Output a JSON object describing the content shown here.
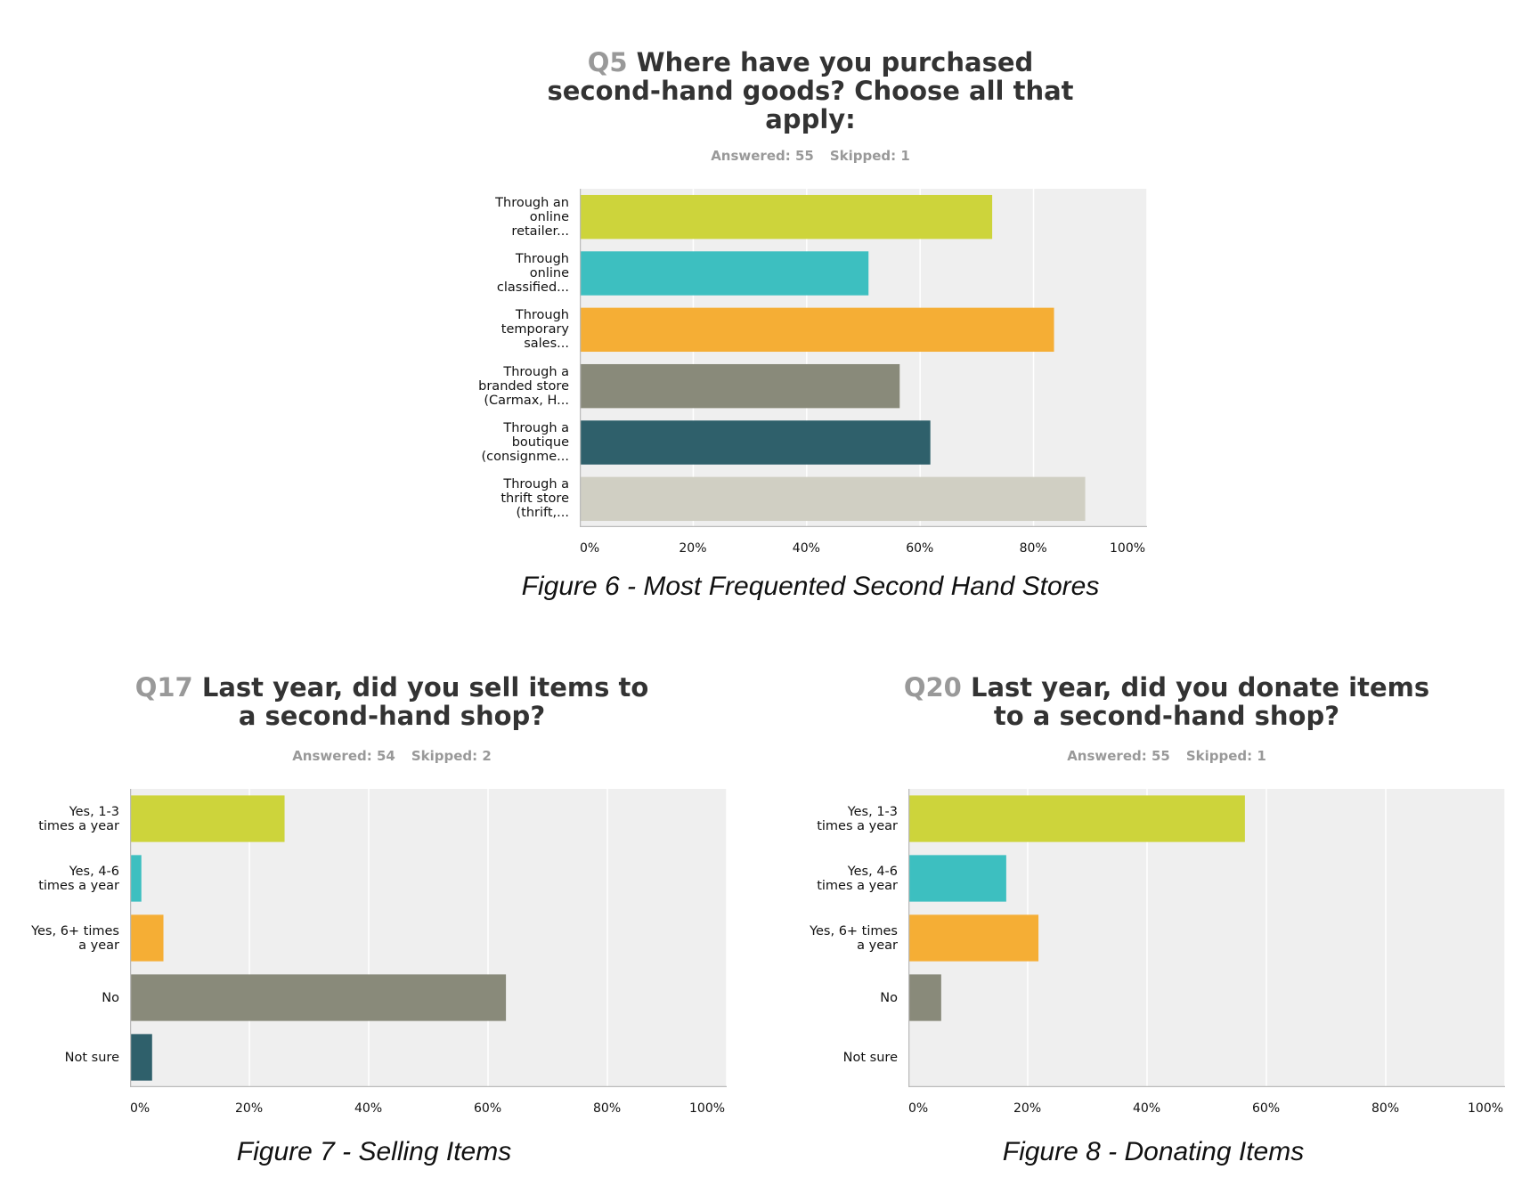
{
  "chart_data": [
    {
      "type": "bar",
      "orientation": "horizontal",
      "question_number": "Q5",
      "title": "Where have you purchased second-hand goods? Choose all that apply:",
      "title_lines": [
        "Where have you purchased",
        "second-hand goods? Choose all that",
        "apply:"
      ],
      "answered": "Answered: 55",
      "skipped": "Skipped: 1",
      "categories": [
        "Through an\nonline\nretailer...",
        "Through\nonline\nclassified...",
        "Through\ntemporary\nsales...",
        "Through a\nbranded store\n(Carmax, H...",
        "Through a\nboutique\n(consignme...",
        "Through a\nthrift store\n(thrift,..."
      ],
      "values": [
        72.7,
        50.9,
        83.6,
        56.4,
        61.8,
        89.1
      ],
      "colors": [
        "#cdd43b",
        "#3dbfc0",
        "#f5ae35",
        "#898a7a",
        "#2f606b",
        "#d0cfc3"
      ],
      "xlim": [
        0,
        100
      ],
      "xticks": [
        "0%",
        "20%",
        "40%",
        "60%",
        "80%",
        "100%"
      ],
      "grid": true,
      "caption": "Figure 6 - Most Frequented Second Hand Stores"
    },
    {
      "type": "bar",
      "orientation": "horizontal",
      "question_number": "Q17",
      "title": "Last year, did you sell items to a second-hand shop?",
      "title_lines": [
        "Last year, did you sell items to",
        "a second-hand shop?"
      ],
      "answered": "Answered: 54",
      "skipped": "Skipped: 2",
      "categories": [
        "Yes, 1-3\ntimes a year",
        "Yes, 4-6\ntimes a year",
        "Yes, 6+ times\na year",
        "No",
        "Not sure"
      ],
      "values": [
        25.9,
        1.9,
        5.6,
        63.0,
        3.7
      ],
      "colors": [
        "#cdd43b",
        "#3dbfc0",
        "#f5ae35",
        "#898a7a",
        "#2f606b"
      ],
      "xlim": [
        0,
        100
      ],
      "xticks": [
        "0%",
        "20%",
        "40%",
        "60%",
        "80%",
        "100%"
      ],
      "grid": true,
      "caption": "Figure 7 - Selling Items"
    },
    {
      "type": "bar",
      "orientation": "horizontal",
      "question_number": "Q20",
      "title": "Last year, did you donate items to a second-hand shop?",
      "title_lines": [
        "Last year, did you donate items",
        "to a second-hand shop?"
      ],
      "answered": "Answered: 55",
      "skipped": "Skipped: 1",
      "categories": [
        "Yes, 1-3\ntimes a year",
        "Yes, 4-6\ntimes a year",
        "Yes, 6+ times\na year",
        "No",
        "Not sure"
      ],
      "values": [
        56.4,
        16.4,
        21.8,
        5.5,
        0
      ],
      "colors": [
        "#cdd43b",
        "#3dbfc0",
        "#f5ae35",
        "#898a7a",
        "#2f606b"
      ],
      "xlim": [
        0,
        100
      ],
      "xticks": [
        "0%",
        "20%",
        "40%",
        "60%",
        "80%",
        "100%"
      ],
      "grid": true,
      "caption": "Figure 8 - Donating Items"
    }
  ]
}
